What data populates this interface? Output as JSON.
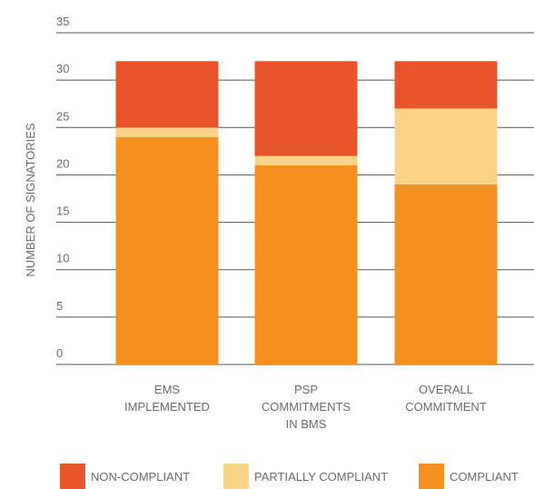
{
  "chart_data": {
    "type": "bar",
    "stacked": true,
    "y_label": "NUMBER OF SIGNATORIES",
    "categories": [
      [
        "EMS",
        "IMPLEMENTED"
      ],
      [
        "PSP",
        "COMMITMENTS",
        "IN BMS"
      ],
      [
        "OVERALL",
        "COMMITMENT"
      ]
    ],
    "series": [
      {
        "name": "NON-COMPLIANT",
        "color": "#e8552a",
        "values": [
          7,
          10,
          5
        ]
      },
      {
        "name": "PARTIALLY COMPLIANT",
        "color": "#fdd38a",
        "values": [
          1,
          1,
          8
        ]
      },
      {
        "name": "COMPLIANT",
        "color": "#f5901f",
        "values": [
          24,
          21,
          19
        ]
      }
    ],
    "ylim": [
      0,
      35
    ],
    "yticks": [
      0,
      5,
      10,
      15,
      20,
      25,
      30,
      35
    ],
    "grid": true,
    "legend": "bottom"
  }
}
